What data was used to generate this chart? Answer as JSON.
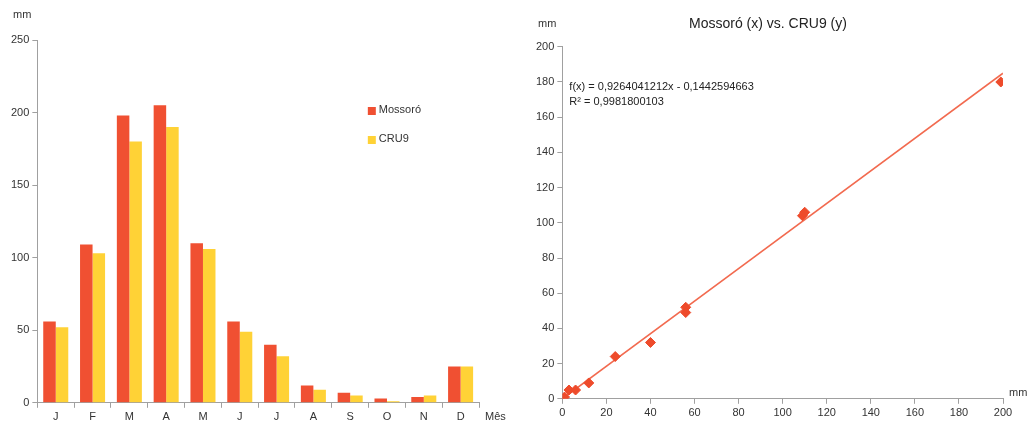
{
  "chart_data": [
    {
      "type": "bar",
      "xlabel": "Mês",
      "ylabel": "mm",
      "categories": [
        "J",
        "F",
        "M",
        "A",
        "M",
        "J",
        "J",
        "A",
        "S",
        "O",
        "N",
        "D"
      ],
      "ylim": [
        0,
        250
      ],
      "yticks": [
        0,
        50,
        100,
        150,
        200,
        250
      ],
      "grid": false,
      "legend": "top right",
      "series": [
        {
          "name": "Mossoró",
          "color": "#f05032",
          "values": [
            56,
            109,
            198,
            205,
            110,
            56,
            40,
            12,
            7,
            3,
            4,
            25
          ]
        },
        {
          "name": "CRU9",
          "color": "#ffd236",
          "values": [
            52,
            103,
            180,
            190,
            106,
            49,
            32,
            9,
            5,
            1,
            5,
            25
          ]
        }
      ]
    },
    {
      "type": "scatter",
      "title": "Mossoró (x) vs. CRU9 (y)",
      "xlabel": "mm",
      "ylabel": "mm",
      "xlim": [
        0,
        200
      ],
      "ylim": [
        0,
        200
      ],
      "xticks": [
        0,
        20,
        40,
        60,
        80,
        100,
        120,
        140,
        160,
        180,
        200
      ],
      "yticks": [
        0,
        20,
        40,
        60,
        80,
        100,
        120,
        140,
        160,
        180,
        200
      ],
      "grid": false,
      "marker": "diamond",
      "annotations": [
        "f(x) = 0,9264041212x - 0,1442594663",
        "R² = 0,9981800103"
      ],
      "series": [
        {
          "type": "scatter",
          "color": "#ee4b2b",
          "x": [
            1,
            3,
            6,
            12,
            24,
            40,
            56,
            56,
            109,
            110,
            199
          ],
          "values": [
            1,
            5,
            5,
            9,
            24,
            32,
            52,
            49,
            104,
            106,
            180
          ]
        },
        {
          "type": "line",
          "color": "#f26a4f",
          "marker": "none",
          "x": [
            0,
            200
          ],
          "values": [
            0,
            185
          ]
        }
      ]
    }
  ]
}
